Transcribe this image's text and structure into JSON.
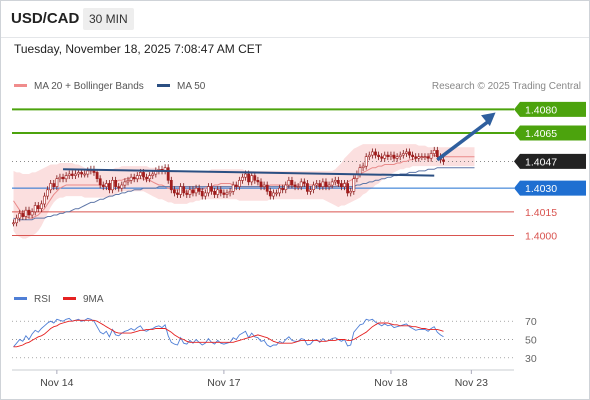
{
  "header": {
    "symbol": "USD/CAD",
    "timeframe": "30 MIN",
    "datetime": "Tuesday, November 18, 2025 7:08:47 AM CET"
  },
  "legend": {
    "ma20_label": "MA 20 + Bollinger Bands",
    "ma50_label": "MA 50",
    "credit": "Research © 2025 Trading Central"
  },
  "rsi_legend": {
    "rsi_label": "RSI",
    "ma_label": "9MA"
  },
  "colors": {
    "green_level": "#4ca30d",
    "blue_level": "#1f6fd1",
    "red_level": "#d9534f",
    "current_price": "#222222",
    "trendline": "#2b4f82",
    "arrow": "#2f5f9e",
    "ma20": "#e98a8a",
    "bollinger_fill": "#f9d4d4",
    "ma50": "#5f77a8",
    "rsi": "#4f7fd6",
    "rsi_ma": "#e52222",
    "candle_up": "#a11d1d",
    "candle_down": "#a11d1d"
  },
  "chart_data": {
    "type": "line",
    "subtype": "candlestick",
    "ylim": [
      1.39895,
      1.40866
    ],
    "price_labels": [
      "1.4080",
      "1.4065",
      "1.4047",
      "1.4030",
      "1.4015",
      "1.4000"
    ],
    "levels": [
      {
        "price": 1.408,
        "label": "1.4080",
        "role": "resistance",
        "color": "#4ca30d"
      },
      {
        "price": 1.4065,
        "label": "1.4065",
        "role": "resistance",
        "color": "#4ca30d"
      },
      {
        "price": 1.4047,
        "label": "1.4047",
        "role": "current",
        "color": "#222222"
      },
      {
        "price": 1.403,
        "label": "1.4030",
        "role": "pivot",
        "color": "#1f6fd1"
      },
      {
        "price": 1.4015,
        "label": "1.4015",
        "role": "support",
        "color": "#d9534f"
      },
      {
        "price": 1.4,
        "label": "1.4000",
        "role": "support",
        "color": "#d9534f"
      }
    ],
    "x_labels": [
      "Nov 14",
      "Nov 17",
      "Nov 18",
      "Nov 23"
    ],
    "x_label_index": [
      14,
      68,
      122,
      148
    ],
    "bar_count": 150,
    "candles_close": [
      1.4008,
      1.4011,
      1.4014,
      1.4012,
      1.4016,
      1.4013,
      1.4015,
      1.4019,
      1.4017,
      1.402,
      1.4025,
      1.4029,
      1.4033,
      1.4031,
      1.4036,
      1.4037,
      1.4036,
      1.4038,
      1.4039,
      1.4038,
      1.4039,
      1.404,
      1.4039,
      1.4039,
      1.4041,
      1.4042,
      1.404,
      1.4036,
      1.4032,
      1.4031,
      1.4033,
      1.4029,
      1.4035,
      1.4031,
      1.403,
      1.4032,
      1.4034,
      1.4035,
      1.4037,
      1.4036,
      1.4038,
      1.404,
      1.4037,
      1.4036,
      1.4038,
      1.4039,
      1.4041,
      1.4042,
      1.4041,
      1.4043,
      1.4035,
      1.4029,
      1.4027,
      1.4026,
      1.4031,
      1.4027,
      1.4026,
      1.4029,
      1.4027,
      1.403,
      1.4028,
      1.4025,
      1.4027,
      1.4031,
      1.4028,
      1.4026,
      1.4029,
      1.4027,
      1.4026,
      1.4027,
      1.4028,
      1.4032,
      1.4031,
      1.4035,
      1.4037,
      1.4039,
      1.4034,
      1.4038,
      1.4035,
      1.4034,
      1.4031,
      1.4032,
      1.4028,
      1.4025,
      1.4027,
      1.4027,
      1.403,
      1.4029,
      1.4032,
      1.4035,
      1.4032,
      1.4031,
      1.4031,
      1.4034,
      1.4033,
      1.4028,
      1.4029,
      1.4032,
      1.4033,
      1.4031,
      1.4034,
      1.4031,
      1.4032,
      1.4034,
      1.4035,
      1.4033,
      1.4031,
      1.4033,
      1.4027,
      1.4028,
      1.4036,
      1.4039,
      1.4043,
      1.4044,
      1.405,
      1.4051,
      1.4053,
      1.4051,
      1.405,
      1.4049,
      1.4051,
      1.405,
      1.4051,
      1.4049,
      1.405,
      1.4051,
      1.4052,
      1.4053,
      1.4051,
      1.405,
      1.4049,
      1.405,
      1.405,
      1.405,
      1.4049,
      1.4052,
      1.4054,
      1.405,
      1.4048,
      1.4047
    ],
    "trendline": {
      "start_index": 16,
      "end_index": 136,
      "start_price": 1.4042,
      "end_price": 1.4038
    },
    "arrow": {
      "from_index": 137,
      "from_price": 1.4048,
      "to_index": 150,
      "to_price": 1.4078
    },
    "ma20": [
      1.4022,
      1.4019,
      1.4016,
      1.4013,
      1.4012,
      1.4011,
      1.4011,
      1.4012,
      1.4013,
      1.4015,
      1.4017,
      1.402,
      1.4023,
      1.4026,
      1.4028,
      1.403,
      1.4031,
      1.4032,
      1.4032,
      1.4032,
      1.4032,
      1.4032,
      1.4032,
      1.4032,
      1.4032,
      1.4032,
      1.4032,
      1.4032,
      1.4032,
      1.4032,
      1.4032,
      1.4033,
      1.4033,
      1.4034,
      1.4035,
      1.4035,
      1.4036,
      1.4036,
      1.4036,
      1.4036,
      1.4036,
      1.4036,
      1.4036,
      1.4035,
      1.4035,
      1.4034,
      1.4033,
      1.4032,
      1.4032,
      1.4031,
      1.403,
      1.403,
      1.4029,
      1.4029,
      1.4029,
      1.4028,
      1.4028,
      1.4028,
      1.4028,
      1.4028,
      1.4029,
      1.4029,
      1.403,
      1.4031,
      1.4031,
      1.4032,
      1.4032,
      1.4033,
      1.4033,
      1.4033,
      1.4033,
      1.4032,
      1.4032,
      1.4031,
      1.4031,
      1.4031,
      1.4031,
      1.4031,
      1.4031,
      1.4031,
      1.4031,
      1.4031,
      1.4031,
      1.4032,
      1.4032,
      1.4032,
      1.4032,
      1.4032,
      1.4032,
      1.4032,
      1.4032,
      1.4032,
      1.4032,
      1.4032,
      1.4032,
      1.4032,
      1.4032,
      1.4032,
      1.4032,
      1.4032,
      1.4032,
      1.4032,
      1.4031,
      1.4031,
      1.4031,
      1.4032,
      1.4032,
      1.4033,
      1.4034,
      1.4035,
      1.4036,
      1.4038,
      1.4039,
      1.404,
      1.4041,
      1.4042,
      1.4043,
      1.4043,
      1.4044,
      1.4044,
      1.4045,
      1.4045,
      1.4045,
      1.4045,
      1.4046,
      1.4046,
      1.4047,
      1.4047,
      1.4048,
      1.4048,
      1.4049,
      1.405,
      1.405,
      1.405,
      1.405,
      1.4051,
      1.4051,
      1.405,
      1.405,
      1.405,
      1.405,
      1.405,
      1.405,
      1.405,
      1.405,
      1.405,
      1.405,
      1.405,
      1.405,
      1.405
    ],
    "bollinger_upper": [
      1.4041,
      1.404,
      1.404,
      1.4039,
      1.4039,
      1.4039,
      1.404,
      1.404,
      1.4041,
      1.4042,
      1.4043,
      1.4044,
      1.4045,
      1.4045,
      1.4045,
      1.4046,
      1.4046,
      1.4046,
      1.4046,
      1.4046,
      1.4045,
      1.4045,
      1.4044,
      1.4043,
      1.4042,
      1.4042,
      1.4041,
      1.4041,
      1.4041,
      1.4041,
      1.4041,
      1.4042,
      1.4042,
      1.4043,
      1.4043,
      1.4044,
      1.4044,
      1.4044,
      1.4044,
      1.4044,
      1.4044,
      1.4044,
      1.4044,
      1.4044,
      1.4043,
      1.4043,
      1.4043,
      1.4042,
      1.4042,
      1.4042,
      1.4041,
      1.4041,
      1.4041,
      1.404,
      1.404,
      1.404,
      1.404,
      1.404,
      1.404,
      1.404,
      1.404,
      1.4041,
      1.4041,
      1.4041,
      1.4042,
      1.4042,
      1.4042,
      1.4042,
      1.4042,
      1.4042,
      1.4042,
      1.4042,
      1.4042,
      1.4042,
      1.4042,
      1.4041,
      1.4041,
      1.4041,
      1.4041,
      1.4041,
      1.4041,
      1.4041,
      1.4041,
      1.4041,
      1.4041,
      1.4041,
      1.4041,
      1.4041,
      1.4041,
      1.4041,
      1.4041,
      1.4041,
      1.4041,
      1.4041,
      1.4041,
      1.4041,
      1.4041,
      1.4041,
      1.4041,
      1.4041,
      1.4041,
      1.4041,
      1.4041,
      1.4041,
      1.4042,
      1.4044,
      1.4046,
      1.4049,
      1.4051,
      1.4053,
      1.4055,
      1.4056,
      1.4057,
      1.4058,
      1.4058,
      1.4058,
      1.4058,
      1.4058,
      1.4058,
      1.4058,
      1.4058,
      1.4058,
      1.4058,
      1.4058,
      1.4058,
      1.4058,
      1.4058,
      1.4058,
      1.4058,
      1.4058,
      1.4058,
      1.4057,
      1.4057,
      1.4057,
      1.4056,
      1.4056,
      1.4056,
      1.4056,
      1.4056,
      1.4056,
      1.4056,
      1.4056,
      1.4056,
      1.4056,
      1.4056,
      1.4056,
      1.4056,
      1.4056,
      1.4056,
      1.4056
    ],
    "bollinger_lower": [
      1.4003,
      1.4,
      1.3999,
      1.3998,
      1.3998,
      1.3999,
      1.4,
      1.4001,
      1.4003,
      1.4006,
      1.401,
      1.4014,
      1.4018,
      1.4021,
      1.4023,
      1.4024,
      1.4024,
      1.4025,
      1.4025,
      1.4025,
      1.4025,
      1.4025,
      1.4025,
      1.4024,
      1.4024,
      1.4024,
      1.4024,
      1.4024,
      1.4024,
      1.4024,
      1.4024,
      1.4024,
      1.4025,
      1.4026,
      1.4027,
      1.4028,
      1.4028,
      1.4028,
      1.4028,
      1.4028,
      1.4028,
      1.4028,
      1.4028,
      1.4027,
      1.4026,
      1.4025,
      1.4024,
      1.4023,
      1.4023,
      1.4022,
      1.4021,
      1.4021,
      1.402,
      1.402,
      1.402,
      1.402,
      1.402,
      1.4021,
      1.4021,
      1.4022,
      1.4022,
      1.4023,
      1.4023,
      1.4023,
      1.4023,
      1.4023,
      1.4023,
      1.4023,
      1.4023,
      1.4023,
      1.4023,
      1.4023,
      1.4023,
      1.4022,
      1.4022,
      1.4022,
      1.4022,
      1.4022,
      1.4022,
      1.4022,
      1.4022,
      1.4022,
      1.4022,
      1.4023,
      1.4023,
      1.4023,
      1.4023,
      1.4023,
      1.4023,
      1.4023,
      1.4023,
      1.4023,
      1.4023,
      1.4023,
      1.4023,
      1.4023,
      1.4023,
      1.4023,
      1.4023,
      1.4023,
      1.4023,
      1.4022,
      1.4021,
      1.402,
      1.4019,
      1.4018,
      1.4019,
      1.4019,
      1.402,
      1.4021,
      1.4022,
      1.4023,
      1.4024,
      1.4026,
      1.4027,
      1.4029,
      1.403,
      1.4032,
      1.4033,
      1.4035,
      1.4036,
      1.4038,
      1.4039,
      1.404,
      1.4041,
      1.4042,
      1.4042,
      1.4043,
      1.4043,
      1.4044,
      1.4044,
      1.4044,
      1.4044,
      1.4044,
      1.4044,
      1.4044,
      1.4044,
      1.4044,
      1.4044,
      1.4044,
      1.4044,
      1.4044,
      1.4044,
      1.4044,
      1.4044,
      1.4044,
      1.4044,
      1.4044,
      1.4044,
      1.4044
    ],
    "ma50": [
      1.4011,
      1.401,
      1.401,
      1.401,
      1.401,
      1.401,
      1.401,
      1.4011,
      1.4011,
      1.4011,
      1.4011,
      1.4012,
      1.4012,
      1.4013,
      1.4013,
      1.4014,
      1.4014,
      1.4015,
      1.4015,
      1.4016,
      1.4017,
      1.4017,
      1.4018,
      1.4019,
      1.402,
      1.4021,
      1.4021,
      1.4022,
      1.4023,
      1.4023,
      1.4024,
      1.4025,
      1.4025,
      1.4026,
      1.4026,
      1.4027,
      1.4027,
      1.4028,
      1.4028,
      1.4029,
      1.4029,
      1.4029,
      1.403,
      1.403,
      1.403,
      1.403,
      1.403,
      1.4031,
      1.4031,
      1.4031,
      1.4031,
      1.4031,
      1.4031,
      1.4031,
      1.4031,
      1.4031,
      1.4031,
      1.4031,
      1.4031,
      1.4031,
      1.4031,
      1.4031,
      1.4031,
      1.4031,
      1.4031,
      1.4031,
      1.4031,
      1.4031,
      1.4031,
      1.4031,
      1.4031,
      1.4031,
      1.4031,
      1.4031,
      1.4031,
      1.4031,
      1.4031,
      1.4031,
      1.4031,
      1.4031,
      1.4031,
      1.4031,
      1.4031,
      1.4031,
      1.4031,
      1.4031,
      1.4031,
      1.4031,
      1.4031,
      1.4031,
      1.4031,
      1.4031,
      1.4031,
      1.4031,
      1.4031,
      1.4031,
      1.4031,
      1.4031,
      1.4031,
      1.4031,
      1.4031,
      1.4031,
      1.4031,
      1.4031,
      1.4031,
      1.4031,
      1.4031,
      1.4031,
      1.4031,
      1.4031,
      1.4031,
      1.4032,
      1.4032,
      1.4033,
      1.4033,
      1.4034,
      1.4034,
      1.4035,
      1.4035,
      1.4036,
      1.4036,
      1.4037,
      1.4037,
      1.4038,
      1.4038,
      1.4039,
      1.4039,
      1.4039,
      1.404,
      1.404,
      1.404,
      1.4041,
      1.4041,
      1.4041,
      1.4042,
      1.4042,
      1.4042,
      1.4043,
      1.4043,
      1.4043,
      1.4043,
      1.4043,
      1.4043,
      1.4043,
      1.4043,
      1.4043,
      1.4043,
      1.4043,
      1.4043,
      1.4043
    ],
    "rsi": {
      "ylim": [
        20,
        80
      ],
      "tick_labels": [
        "70",
        "50",
        "30"
      ],
      "tick_values": [
        70,
        50,
        30
      ],
      "rsi_values": [
        42,
        46,
        50,
        48,
        54,
        50,
        56,
        60,
        58,
        62,
        65,
        68,
        70,
        68,
        72,
        71,
        70,
        72,
        73,
        70,
        71,
        72,
        70,
        71,
        73,
        72,
        70,
        64,
        58,
        56,
        59,
        53,
        61,
        55,
        54,
        57,
        59,
        60,
        62,
        60,
        63,
        65,
        60,
        59,
        61,
        62,
        64,
        65,
        63,
        66,
        54,
        47,
        45,
        44,
        52,
        46,
        45,
        49,
        46,
        50,
        47,
        44,
        46,
        51,
        47,
        45,
        49,
        46,
        45,
        46,
        47,
        52,
        50,
        55,
        57,
        59,
        52,
        57,
        53,
        52,
        48,
        49,
        44,
        42,
        44,
        44,
        48,
        46,
        50,
        53,
        49,
        48,
        48,
        51,
        50,
        44,
        45,
        49,
        50,
        47,
        51,
        48,
        49,
        51,
        52,
        50,
        48,
        50,
        43,
        44,
        58,
        62,
        66,
        67,
        72,
        71,
        72,
        69,
        67,
        65,
        67,
        65,
        66,
        63,
        64,
        65,
        66,
        67,
        64,
        62,
        60,
        61,
        61,
        61,
        59,
        62,
        64,
        58,
        55,
        53
      ],
      "ma9_values": [
        42,
        42,
        43,
        44,
        46,
        47,
        49,
        51,
        53,
        54,
        56,
        59,
        62,
        64,
        65,
        67,
        68,
        69,
        70,
        70,
        71,
        71,
        71,
        71,
        71,
        71,
        71,
        70,
        68,
        66,
        64,
        62,
        60,
        58,
        57,
        57,
        57,
        57,
        57,
        58,
        59,
        60,
        60,
        61,
        61,
        61,
        62,
        62,
        62,
        62,
        60,
        58,
        55,
        53,
        51,
        50,
        48,
        47,
        47,
        47,
        47,
        47,
        47,
        47,
        47,
        47,
        47,
        47,
        47,
        47,
        47,
        47,
        48,
        49,
        50,
        51,
        52,
        53,
        54,
        55,
        54,
        53,
        52,
        50,
        48,
        47,
        46,
        46,
        46,
        46,
        46,
        47,
        48,
        49,
        49,
        49,
        49,
        49,
        49,
        48,
        48,
        48,
        49,
        49,
        49,
        50,
        50,
        50,
        49,
        49,
        50,
        52,
        54,
        56,
        58,
        61,
        64,
        66,
        68,
        68,
        68,
        68,
        67,
        66,
        66,
        65,
        65,
        65,
        65,
        64,
        64,
        63,
        62,
        62,
        61,
        61,
        61,
        61,
        60,
        59
      ]
    }
  }
}
